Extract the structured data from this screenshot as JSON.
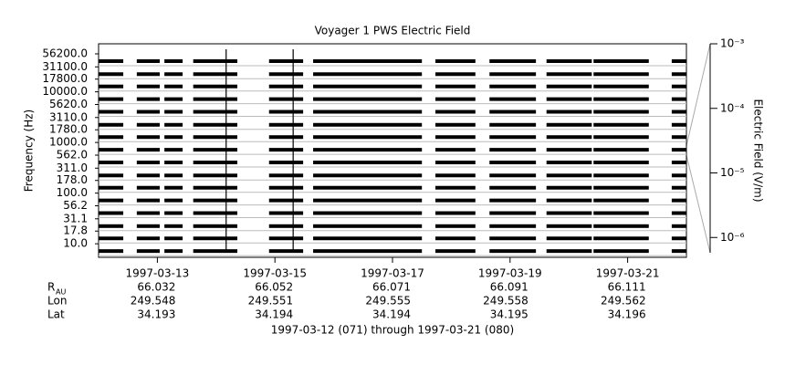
{
  "chart_data": {
    "type": "spectrum-bands",
    "title": "Voyager 1 PWS Electric Field",
    "ylabel": "Frequency (Hz)",
    "ylog": true,
    "ylim": [
      5.4,
      88700
    ],
    "yticks": [
      {
        "value": 56200,
        "label": "56200.0"
      },
      {
        "value": 31100,
        "label": "31100.0"
      },
      {
        "value": 17800,
        "label": "17800.0"
      },
      {
        "value": 10000,
        "label": "10000.0"
      },
      {
        "value": 5620,
        "label": "5620.0"
      },
      {
        "value": 3110,
        "label": "3110.0"
      },
      {
        "value": 1780,
        "label": "1780.0"
      },
      {
        "value": 1000,
        "label": "1000.0"
      },
      {
        "value": 562,
        "label": "562.0"
      },
      {
        "value": 311,
        "label": "311.0"
      },
      {
        "value": 178,
        "label": "178.0"
      },
      {
        "value": 100,
        "label": "100.0"
      },
      {
        "value": 56.2,
        "label": "56.2"
      },
      {
        "value": 31.1,
        "label": "31.1"
      },
      {
        "value": 17.8,
        "label": "17.8"
      },
      {
        "value": 10,
        "label": "10.0"
      }
    ],
    "xlim": [
      71,
      81
    ],
    "xticks": [
      {
        "value": 72,
        "label": "1997-03-13"
      },
      {
        "value": 74,
        "label": "1997-03-15"
      },
      {
        "value": 76,
        "label": "1997-03-17"
      },
      {
        "value": 78,
        "label": "1997-03-19"
      },
      {
        "value": 80,
        "label": "1997-03-21"
      }
    ],
    "coverage": [
      [
        71.0,
        71.42
      ],
      [
        71.65,
        72.04
      ],
      [
        72.12,
        72.43
      ],
      [
        72.61,
        73.36
      ],
      [
        73.9,
        74.48
      ],
      [
        74.65,
        76.5
      ],
      [
        76.73,
        77.41
      ],
      [
        77.65,
        78.44
      ],
      [
        78.62,
        79.39
      ],
      [
        79.42,
        80.36
      ],
      [
        80.75,
        81.0
      ]
    ],
    "bursts": [
      73.17,
      74.31
    ],
    "color": "#000000",
    "y2label": "Electric Field (V/m)",
    "y2log": true,
    "y2lim": [
      5.8e-07,
      0.001
    ],
    "y2ticks": [
      {
        "value": 0.001,
        "label": "10⁻³"
      },
      {
        "value": 0.0001,
        "label": "10⁻⁴"
      },
      {
        "value": 1e-05,
        "label": "10⁻⁵"
      },
      {
        "value": 1e-06,
        "label": "10⁻⁶"
      }
    ],
    "ephemeris": [
      {
        "label": "R",
        "subscript": "AU",
        "values": [
          66.032,
          66.052,
          66.071,
          66.091,
          66.111
        ]
      },
      {
        "label": "Lon",
        "values": [
          249.548,
          249.551,
          249.555,
          249.558,
          249.562
        ]
      },
      {
        "label": "Lat",
        "values": [
          34.193,
          34.194,
          34.194,
          34.195,
          34.196
        ]
      }
    ],
    "footer": "1997-03-12 (071) through 1997-03-21 (080)"
  }
}
